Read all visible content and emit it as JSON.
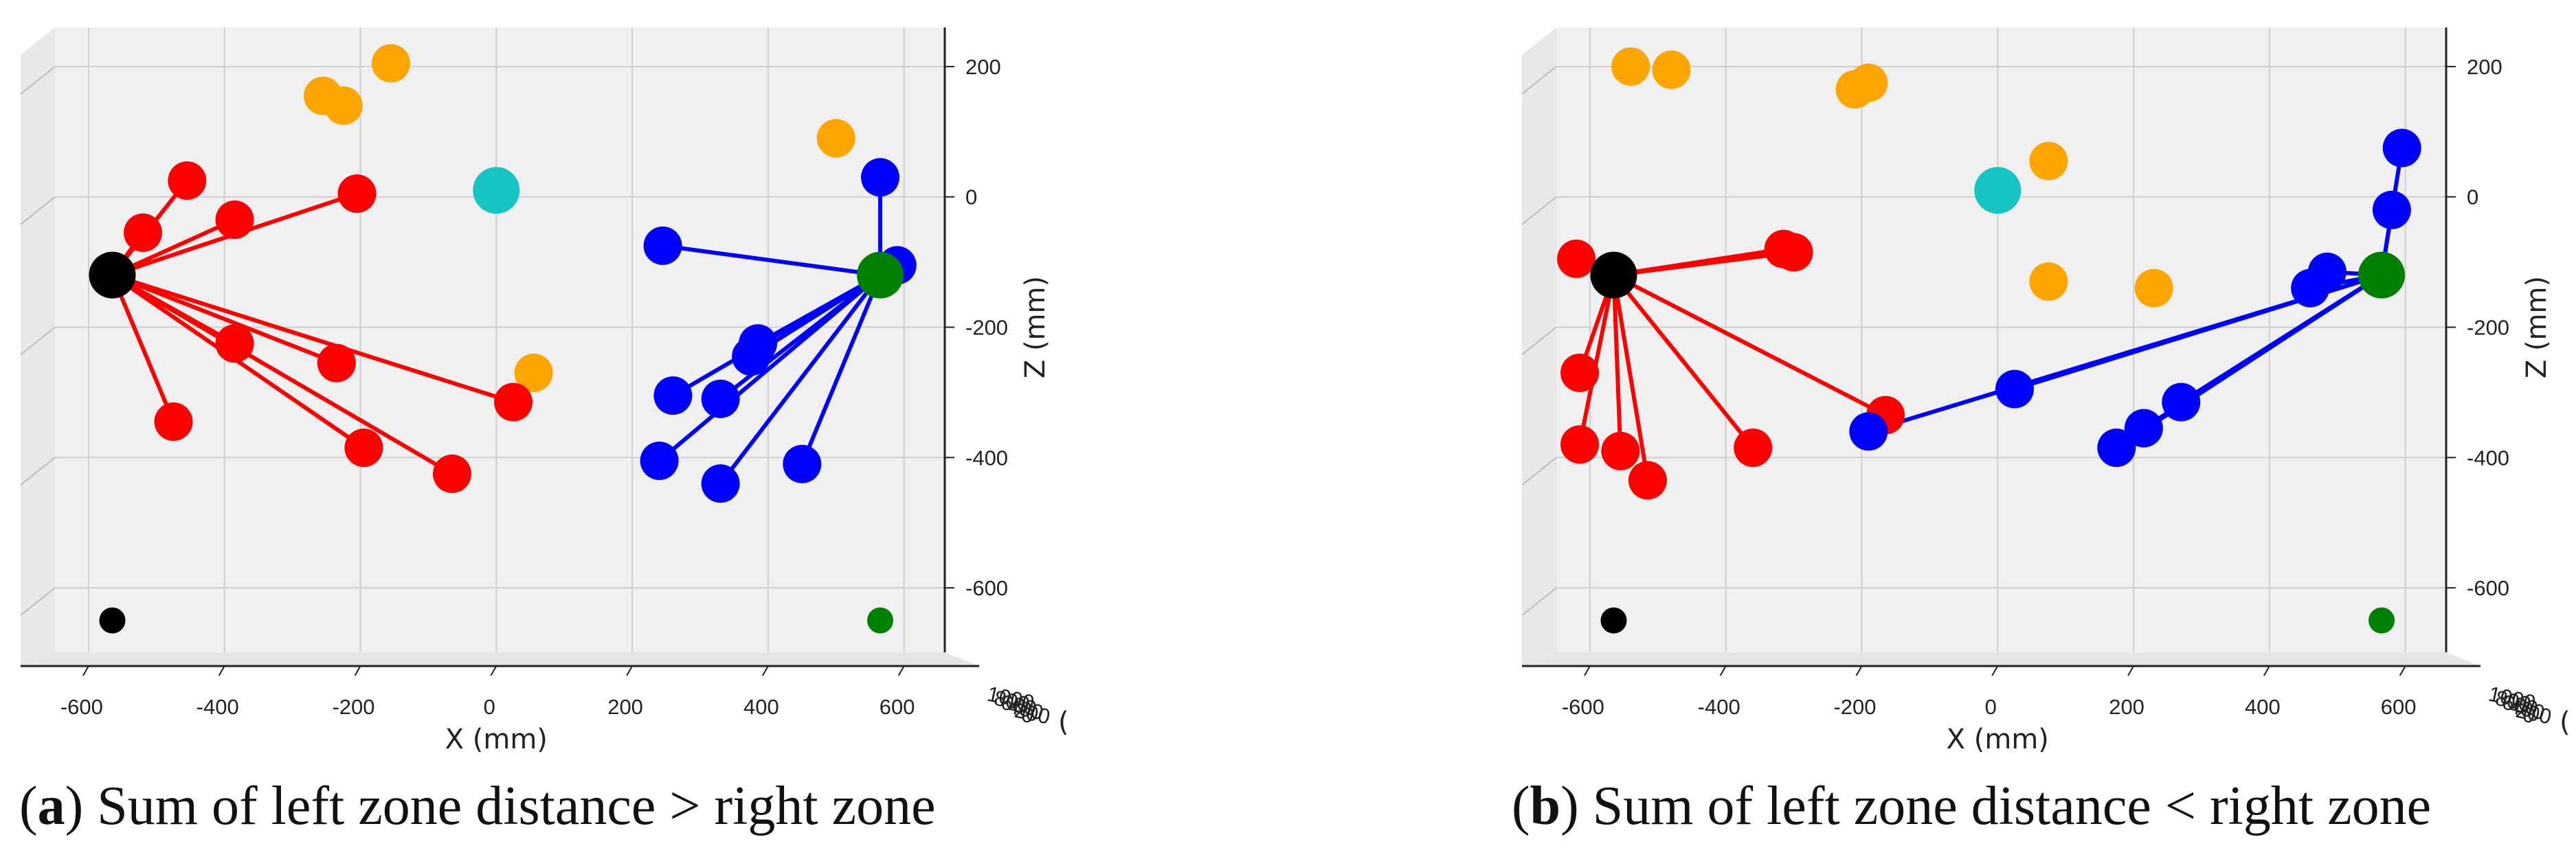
{
  "figure": {
    "captions": [
      {
        "letter": "a",
        "text": ") Sum of left zone distance > right zone"
      },
      {
        "letter": "b",
        "text": ") Sum of left zone distance < right zone"
      }
    ]
  },
  "colors": {
    "left_keypoints": "#ff0000",
    "right_keypoints": "#0000ff",
    "others": "#ffa500",
    "center": "#17c4c4",
    "left_anchor": "#000000",
    "right_anchor": "#008000"
  },
  "chart_data": [
    {
      "type": "scatter",
      "title": "",
      "xlabel": "X (mm)",
      "zlabel": "Z (mm)",
      "depth_tick_labels": [
        "1000",
        "800",
        "600",
        "400",
        "200",
        "0"
      ],
      "depth_unit_fragment": "(",
      "xlim": [
        -700,
        660
      ],
      "zlim": [
        -720,
        260
      ],
      "xticks": [
        -600,
        -400,
        -200,
        0,
        200,
        400,
        600
      ],
      "zticks": [
        200,
        0,
        -200,
        -400,
        -600
      ],
      "left_anchor": {
        "x": -565,
        "z": -120
      },
      "right_anchor": {
        "x": 565,
        "z": -120
      },
      "left_marker_small": {
        "x": -565,
        "z": -650
      },
      "right_marker_small": {
        "x": 565,
        "z": -650
      },
      "center": {
        "x": 0,
        "z": 10
      },
      "left_points": [
        [
          -455,
          25
        ],
        [
          -520,
          -55
        ],
        [
          -385,
          -35
        ],
        [
          -205,
          5
        ],
        [
          -385,
          -225
        ],
        [
          -235,
          -255
        ],
        [
          25,
          -315
        ],
        [
          -195,
          -385
        ],
        [
          -475,
          -345
        ],
        [
          -65,
          -425
        ]
      ],
      "right_points": [
        [
          565,
          30
        ],
        [
          590,
          -105
        ],
        [
          245,
          -75
        ],
        [
          385,
          -225
        ],
        [
          375,
          -245
        ],
        [
          260,
          -305
        ],
        [
          330,
          -310
        ],
        [
          240,
          -405
        ],
        [
          330,
          -440
        ],
        [
          450,
          -410
        ]
      ],
      "other_points": [
        [
          -155,
          205
        ],
        [
          -255,
          155
        ],
        [
          -225,
          140
        ],
        [
          500,
          90
        ],
        [
          55,
          -270
        ]
      ]
    },
    {
      "type": "scatter",
      "title": "",
      "xlabel": "X (mm)",
      "zlabel": "Z (mm)",
      "depth_tick_labels": [
        "1000",
        "800",
        "600",
        "400",
        "200",
        "0"
      ],
      "depth_unit_fragment": "(",
      "xlim": [
        -700,
        660
      ],
      "zlim": [
        -720,
        260
      ],
      "xticks": [
        -600,
        -400,
        -200,
        0,
        200,
        400,
        600
      ],
      "zticks": [
        200,
        0,
        -200,
        -400,
        -600
      ],
      "left_anchor": {
        "x": -565,
        "z": -120
      },
      "right_anchor": {
        "x": 565,
        "z": -120
      },
      "left_marker_small": {
        "x": -565,
        "z": -650
      },
      "right_marker_small": {
        "x": 565,
        "z": -650
      },
      "center": {
        "x": 0,
        "z": 10
      },
      "left_points": [
        [
          -620,
          -95
        ],
        [
          -315,
          -80
        ],
        [
          -300,
          -85
        ],
        [
          -615,
          -270
        ],
        [
          -615,
          -380
        ],
        [
          -555,
          -390
        ],
        [
          -515,
          -435
        ],
        [
          -360,
          -385
        ],
        [
          -165,
          -335
        ]
      ],
      "right_points": [
        [
          595,
          75
        ],
        [
          580,
          -20
        ],
        [
          485,
          -115
        ],
        [
          460,
          -140
        ],
        [
          25,
          -295
        ],
        [
          -190,
          -360
        ],
        [
          270,
          -315
        ],
        [
          215,
          -355
        ],
        [
          175,
          -385
        ]
      ],
      "other_points": [
        [
          -540,
          200
        ],
        [
          -480,
          195
        ],
        [
          -210,
          165
        ],
        [
          -190,
          175
        ],
        [
          75,
          55
        ],
        [
          75,
          -130
        ],
        [
          230,
          -140
        ]
      ]
    }
  ]
}
